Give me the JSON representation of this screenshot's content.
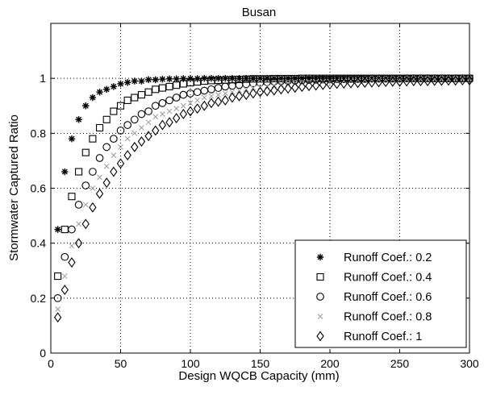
{
  "chart_data": {
    "type": "scatter",
    "title": "Busan",
    "xlabel": "Design WQCB Capacity (mm)",
    "ylabel": "Stormwater Captured Ratio",
    "xlim": [
      0,
      300
    ],
    "ylim": [
      0,
      1.2
    ],
    "xticks": [
      "0",
      "50",
      "100",
      "150",
      "200",
      "250",
      "300"
    ],
    "yticks": [
      "0",
      "0.2",
      "0.4",
      "0.6",
      "0.8",
      "1"
    ],
    "grid": true,
    "legend_position": "bottom-right",
    "x": [
      5,
      10,
      15,
      20,
      25,
      30,
      35,
      40,
      45,
      50,
      55,
      60,
      65,
      70,
      75,
      80,
      85,
      90,
      95,
      100,
      105,
      110,
      115,
      120,
      125,
      130,
      135,
      140,
      145,
      150,
      155,
      160,
      165,
      170,
      175,
      180,
      185,
      190,
      195,
      200,
      205,
      210,
      215,
      220,
      225,
      230,
      235,
      240,
      245,
      250,
      255,
      260,
      265,
      270,
      275,
      280,
      285,
      290,
      295,
      300
    ],
    "series": [
      {
        "name": "Runoff Coef.: 0.2",
        "marker": "star",
        "color": "#000000",
        "values": [
          0.45,
          0.66,
          0.78,
          0.85,
          0.9,
          0.93,
          0.95,
          0.96,
          0.97,
          0.98,
          0.985,
          0.99,
          0.99,
          0.995,
          0.995,
          0.997,
          0.998,
          0.998,
          0.999,
          0.999,
          0.999,
          1,
          1,
          1,
          1,
          1,
          1,
          1,
          1,
          1,
          1,
          1,
          1,
          1,
          1,
          1,
          1,
          1,
          1,
          1,
          1,
          1,
          1,
          1,
          1,
          1,
          1,
          1,
          1,
          1,
          1,
          1,
          1,
          1,
          1,
          1,
          1,
          1,
          1,
          1
        ]
      },
      {
        "name": "Runoff Coef.: 0.4",
        "marker": "square",
        "color": "#000000",
        "values": [
          0.28,
          0.45,
          0.57,
          0.66,
          0.73,
          0.78,
          0.82,
          0.85,
          0.88,
          0.9,
          0.92,
          0.93,
          0.94,
          0.95,
          0.96,
          0.965,
          0.97,
          0.975,
          0.98,
          0.984,
          0.987,
          0.99,
          0.992,
          0.993,
          0.994,
          0.995,
          0.996,
          0.997,
          0.998,
          0.998,
          0.998,
          0.999,
          0.999,
          0.999,
          0.999,
          1,
          1,
          1,
          1,
          1,
          1,
          1,
          1,
          1,
          1,
          1,
          1,
          1,
          1,
          1,
          1,
          1,
          1,
          1,
          1,
          1,
          1,
          1,
          1,
          1
        ]
      },
      {
        "name": "Runoff Coef.: 0.6",
        "marker": "circle",
        "color": "#000000",
        "values": [
          0.2,
          0.35,
          0.45,
          0.54,
          0.61,
          0.66,
          0.71,
          0.75,
          0.78,
          0.81,
          0.83,
          0.85,
          0.87,
          0.88,
          0.9,
          0.91,
          0.92,
          0.93,
          0.94,
          0.945,
          0.95,
          0.955,
          0.96,
          0.965,
          0.97,
          0.973,
          0.976,
          0.979,
          0.982,
          0.984,
          0.986,
          0.988,
          0.99,
          0.991,
          0.992,
          0.993,
          0.994,
          0.995,
          0.996,
          0.996,
          0.997,
          0.997,
          0.998,
          0.998,
          0.998,
          0.999,
          0.999,
          0.999,
          0.999,
          0.999,
          1,
          1,
          1,
          1,
          1,
          1,
          1,
          1,
          1,
          1
        ]
      },
      {
        "name": "Runoff Coef.: 0.8",
        "marker": "x",
        "color": "#999999",
        "values": [
          0.16,
          0.28,
          0.39,
          0.47,
          0.54,
          0.6,
          0.64,
          0.68,
          0.72,
          0.75,
          0.78,
          0.8,
          0.82,
          0.84,
          0.86,
          0.87,
          0.88,
          0.89,
          0.9,
          0.91,
          0.92,
          0.93,
          0.935,
          0.94,
          0.945,
          0.95,
          0.955,
          0.96,
          0.965,
          0.968,
          0.971,
          0.974,
          0.977,
          0.98,
          0.982,
          0.984,
          0.986,
          0.987,
          0.988,
          0.989,
          0.99,
          0.991,
          0.992,
          0.993,
          0.994,
          0.994,
          0.995,
          0.995,
          0.996,
          0.996,
          0.997,
          0.997,
          0.997,
          0.998,
          0.998,
          0.998,
          0.998,
          0.999,
          0.999,
          0.999
        ]
      },
      {
        "name": "Runoff Coef.: 1",
        "marker": "diamond",
        "color": "#000000",
        "values": [
          0.13,
          0.23,
          0.33,
          0.4,
          0.47,
          0.53,
          0.58,
          0.62,
          0.66,
          0.69,
          0.72,
          0.75,
          0.77,
          0.79,
          0.81,
          0.83,
          0.84,
          0.855,
          0.87,
          0.88,
          0.89,
          0.9,
          0.91,
          0.915,
          0.92,
          0.93,
          0.935,
          0.94,
          0.945,
          0.95,
          0.953,
          0.956,
          0.96,
          0.963,
          0.966,
          0.969,
          0.972,
          0.974,
          0.976,
          0.978,
          0.98,
          0.981,
          0.982,
          0.983,
          0.984,
          0.985,
          0.986,
          0.987,
          0.988,
          0.988,
          0.989,
          0.99,
          0.99,
          0.99,
          0.991,
          0.991,
          0.992,
          0.992,
          0.993,
          0.993
        ]
      }
    ]
  }
}
